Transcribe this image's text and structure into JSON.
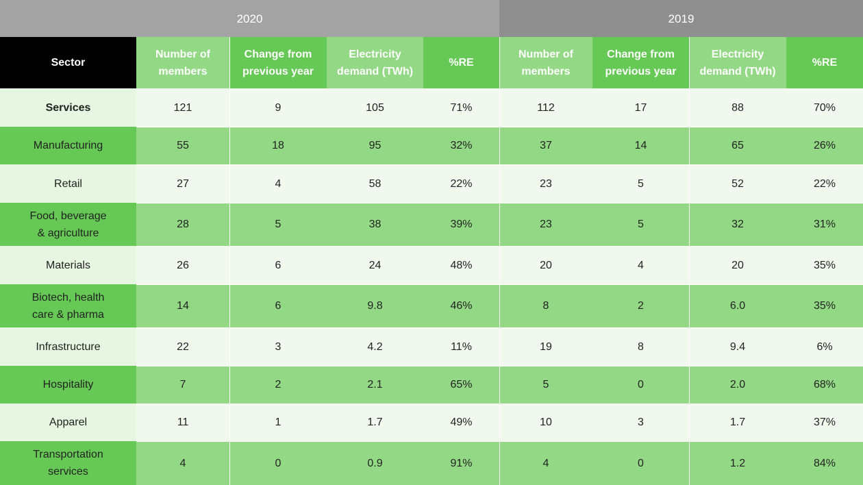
{
  "years": [
    "2020",
    "2019"
  ],
  "headers": {
    "sector": "Sector",
    "columns": [
      "Number of\nmembers",
      "Change from\nprevious year",
      "Electricity\ndemand (TWh)",
      "%RE"
    ]
  },
  "rows": [
    {
      "sector": "Services",
      "y2020": [
        "121",
        "9",
        "105",
        "71%"
      ],
      "y2019": [
        "112",
        "17",
        "88",
        "70%"
      ]
    },
    {
      "sector": "Manufacturing",
      "y2020": [
        "55",
        "18",
        "95",
        "32%"
      ],
      "y2019": [
        "37",
        "14",
        "65",
        "26%"
      ]
    },
    {
      "sector": "Retail",
      "y2020": [
        "27",
        "4",
        "58",
        "22%"
      ],
      "y2019": [
        "23",
        "5",
        "52",
        "22%"
      ]
    },
    {
      "sector": "Food, beverage\n& agriculture",
      "y2020": [
        "28",
        "5",
        "38",
        "39%"
      ],
      "y2019": [
        "23",
        "5",
        "32",
        "31%"
      ]
    },
    {
      "sector": "Materials",
      "y2020": [
        "26",
        "6",
        "24",
        "48%"
      ],
      "y2019": [
        "20",
        "4",
        "20",
        "35%"
      ]
    },
    {
      "sector": "Biotech, health\ncare & pharma",
      "y2020": [
        "14",
        "6",
        "9.8",
        "46%"
      ],
      "y2019": [
        "8",
        "2",
        "6.0",
        "35%"
      ]
    },
    {
      "sector": "Infrastructure",
      "y2020": [
        "22",
        "3",
        "4.2",
        "11%"
      ],
      "y2019": [
        "19",
        "8",
        "9.4",
        "6%"
      ]
    },
    {
      "sector": "Hospitality",
      "y2020": [
        "7",
        "2",
        "2.1",
        "65%"
      ],
      "y2019": [
        "5",
        "0",
        "2.0",
        "68%"
      ]
    },
    {
      "sector": "Apparel",
      "y2020": [
        "11",
        "1",
        "1.7",
        "49%"
      ],
      "y2019": [
        "10",
        "3",
        "1.7",
        "37%"
      ]
    },
    {
      "sector": "Transportation\nservices",
      "y2020": [
        "4",
        "0",
        "0.9",
        "91%"
      ],
      "y2019": [
        "4",
        "0",
        "1.2",
        "84%"
      ]
    }
  ],
  "colors": {
    "year_2020": "#a3a3a3",
    "year_2019": "#8f8f8f",
    "sector_header": "#000000",
    "header_light": "#93d885",
    "header_dark": "#66c855",
    "row_light": "#f1f8ee",
    "row_dark": "#93d885",
    "sector_light": "#e6f6e1",
    "sector_dark": "#66c855"
  }
}
